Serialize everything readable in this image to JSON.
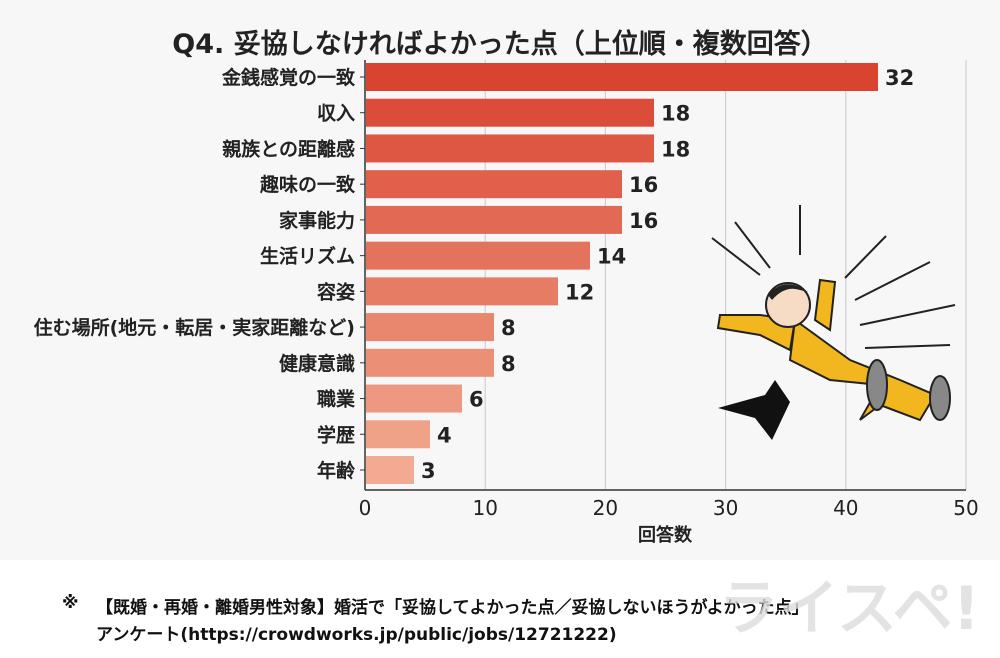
{
  "chart_data": {
    "type": "bar",
    "orientation": "horizontal",
    "title": "Q4. 妥協しなければよかった点（上位順・複数回答）",
    "categories": [
      "金銭感覚の一致",
      "収入",
      "親族との距離感",
      "趣味の一致",
      "家事能力",
      "生活リズム",
      "容姿",
      "住む場所(地元・転居・実家距離など)",
      "健康意識",
      "職業",
      "学歴",
      "年齢"
    ],
    "values": [
      32,
      18,
      18,
      16,
      16,
      14,
      12,
      8,
      8,
      6,
      4,
      3
    ],
    "xlabel": "回答数",
    "ylabel": "",
    "xlim": [
      0,
      50
    ],
    "xticks": [
      0,
      10,
      20,
      30,
      40,
      50
    ],
    "grid": true,
    "bar_color_start": "#d94430",
    "bar_color_end": "#f2ab92"
  },
  "footer": {
    "mark": "※",
    "line1": "【既婚・再婚・離婚男性対象】婚活で「妥協してよかった点／妥協しないほうがよかった点」",
    "line2": "アンケート(https://crowdworks.jp/public/jobs/12721222)"
  },
  "logo": {
    "text": "ライスペ!"
  }
}
